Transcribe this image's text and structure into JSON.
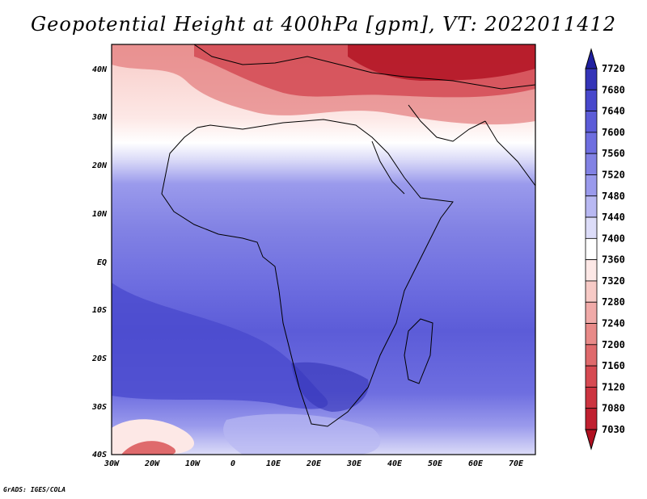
{
  "title": "Geopotential Height at 400hPa [gpm], VT: 2022011412",
  "credit": "GrADS: IGES/COLA",
  "map": {
    "lon_range": [
      -30,
      75
    ],
    "lat_range": [
      -40,
      45
    ],
    "lon_ticks": [
      "30W",
      "20W",
      "10W",
      "0",
      "10E",
      "20E",
      "30E",
      "40E",
      "50E",
      "60E",
      "70E"
    ],
    "lat_ticks": [
      "40N",
      "30N",
      "20N",
      "10N",
      "EQ",
      "10S",
      "20S",
      "30S",
      "40S"
    ]
  },
  "colorbar": {
    "levels": [
      "7030",
      "7080",
      "7120",
      "7160",
      "7200",
      "7240",
      "7280",
      "7320",
      "7360",
      "7400",
      "7440",
      "7480",
      "7520",
      "7560",
      "7600",
      "7640",
      "7680",
      "7720"
    ],
    "colors": [
      "#b01020",
      "#c02030",
      "#cc3440",
      "#d64a52",
      "#df6a6c",
      "#e88a88",
      "#f0aaa8",
      "#f7cac6",
      "#fde8e6",
      "#ffffff",
      "#dcdcf8",
      "#b8b8f2",
      "#9a9aec",
      "#8282e4",
      "#6e6ee0",
      "#5c5cd8",
      "#4848cc",
      "#3434b8",
      "#2020a0"
    ]
  }
}
